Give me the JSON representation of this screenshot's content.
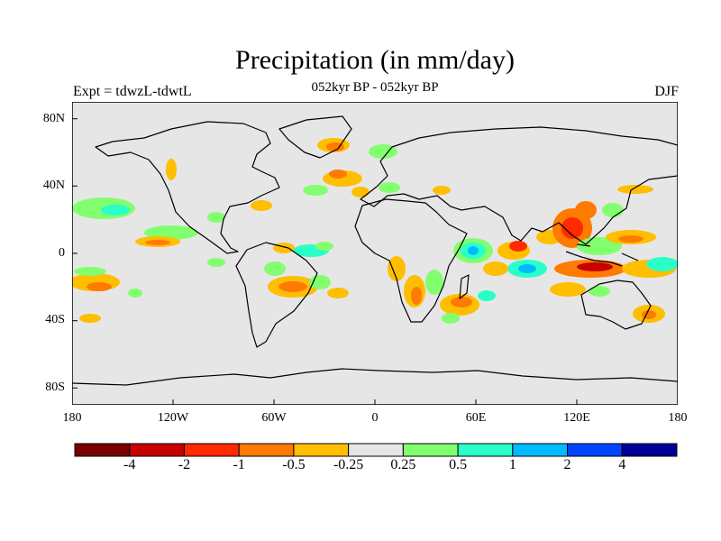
{
  "title": "Precipitation (in mm/day)",
  "subtitle_left": "Expt = tdwzL-tdwtL",
  "subtitle_center": "052kyr BP - 052kyr BP",
  "subtitle_right": "DJF",
  "lat_ticks": [
    {
      "lat": 80,
      "label": "80N"
    },
    {
      "lat": 40,
      "label": "40N"
    },
    {
      "lat": 0,
      "label": "0"
    },
    {
      "lat": -40,
      "label": "40S"
    },
    {
      "lat": -80,
      "label": "80S"
    }
  ],
  "lon_ticks": [
    {
      "lon": -180,
      "label": "180"
    },
    {
      "lon": -120,
      "label": "120W"
    },
    {
      "lon": -60,
      "label": "60W"
    },
    {
      "lon": 0,
      "label": "0"
    },
    {
      "lon": 60,
      "label": "60E"
    },
    {
      "lon": 120,
      "label": "120E"
    },
    {
      "lon": 180,
      "label": "180"
    }
  ],
  "colorbar": {
    "colors": [
      "#7a0000",
      "#c80000",
      "#ff2a00",
      "#ff7a00",
      "#ffbe00",
      "#e6e6e6",
      "#82ff6e",
      "#2affc8",
      "#00bcff",
      "#0046ff",
      "#000096"
    ],
    "labels": [
      "-4",
      "-2",
      "-1",
      "-0.5",
      "-0.25",
      "0.25",
      "0.5",
      "1",
      "2",
      "4"
    ]
  },
  "colors": {
    "background": "#e6e6e6",
    "coastline": "#000000"
  }
}
